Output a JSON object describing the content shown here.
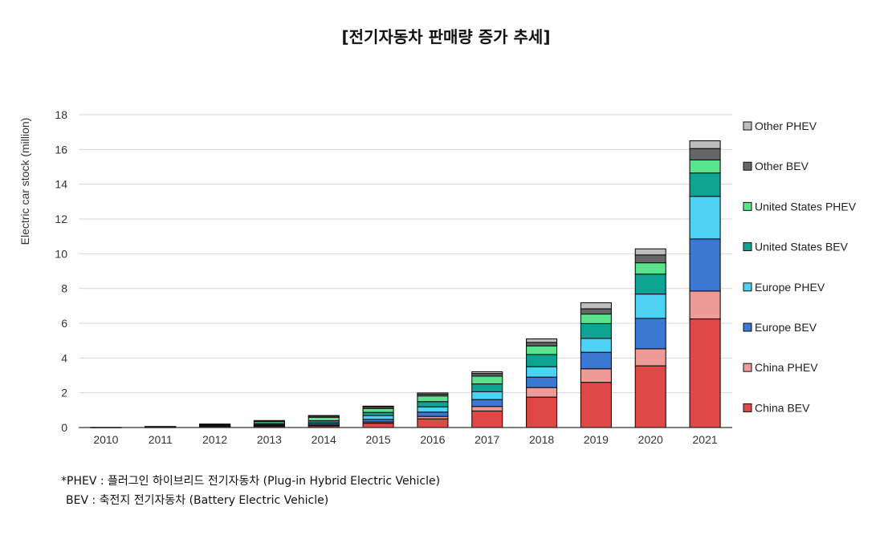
{
  "chart_data": {
    "type": "bar",
    "stacked": true,
    "title": "[전기자동차 판매량 증가 추세]",
    "ylabel": "Electric car stock (million)",
    "xlabel": "",
    "ylim": [
      0,
      18
    ],
    "yticks": [
      0,
      2,
      4,
      6,
      8,
      10,
      12,
      14,
      16,
      18
    ],
    "grid": true,
    "legend_position": "right",
    "categories": [
      "2010",
      "2011",
      "2012",
      "2013",
      "2014",
      "2015",
      "2016",
      "2017",
      "2018",
      "2019",
      "2020",
      "2021"
    ],
    "series": [
      {
        "name": "China BEV",
        "color": "#e04848",
        "values": [
          0.01,
          0.02,
          0.05,
          0.08,
          0.09,
          0.25,
          0.5,
          0.95,
          1.75,
          2.6,
          3.55,
          6.25
        ]
      },
      {
        "name": "China PHEV",
        "color": "#ee9b98",
        "values": [
          0.0,
          0.0,
          0.01,
          0.01,
          0.03,
          0.07,
          0.14,
          0.26,
          0.55,
          0.78,
          0.98,
          1.6
        ]
      },
      {
        "name": "Europe BEV",
        "color": "#3a78d4",
        "values": [
          0.0,
          0.01,
          0.02,
          0.04,
          0.07,
          0.15,
          0.25,
          0.4,
          0.6,
          0.95,
          1.75,
          3.0
        ]
      },
      {
        "name": "Europe PHEV",
        "color": "#4dd2f4",
        "values": [
          0.0,
          0.0,
          0.01,
          0.04,
          0.08,
          0.22,
          0.3,
          0.45,
          0.6,
          0.8,
          1.4,
          2.45
        ]
      },
      {
        "name": "United States BEV",
        "color": "#0fa394",
        "values": [
          0.0,
          0.01,
          0.03,
          0.06,
          0.12,
          0.18,
          0.3,
          0.45,
          0.7,
          0.85,
          1.15,
          1.35
        ]
      },
      {
        "name": "United States PHEV",
        "color": "#5ae28c",
        "values": [
          0.0,
          0.01,
          0.05,
          0.11,
          0.2,
          0.22,
          0.33,
          0.45,
          0.5,
          0.55,
          0.65,
          0.75
        ]
      },
      {
        "name": "Other BEV",
        "color": "#666666",
        "values": [
          0.0,
          0.01,
          0.02,
          0.05,
          0.08,
          0.1,
          0.1,
          0.15,
          0.2,
          0.3,
          0.45,
          0.65
        ]
      },
      {
        "name": "Other PHEV",
        "color": "#bdbdbd",
        "values": [
          0.0,
          0.0,
          0.01,
          0.01,
          0.02,
          0.04,
          0.07,
          0.1,
          0.2,
          0.35,
          0.35,
          0.45
        ]
      }
    ],
    "legend_order": [
      "Other PHEV",
      "Other BEV",
      "United States PHEV",
      "United States BEV",
      "Europe PHEV",
      "Europe BEV",
      "China PHEV",
      "China BEV"
    ]
  },
  "footnotes": {
    "line1": "*PHEV : 플러그인 하이브리드 전기자동차 (Plug-in Hybrid Electric Vehicle)",
    "line2": "BEV : 축전지 전기자동차 (Battery Electric Vehicle)"
  }
}
